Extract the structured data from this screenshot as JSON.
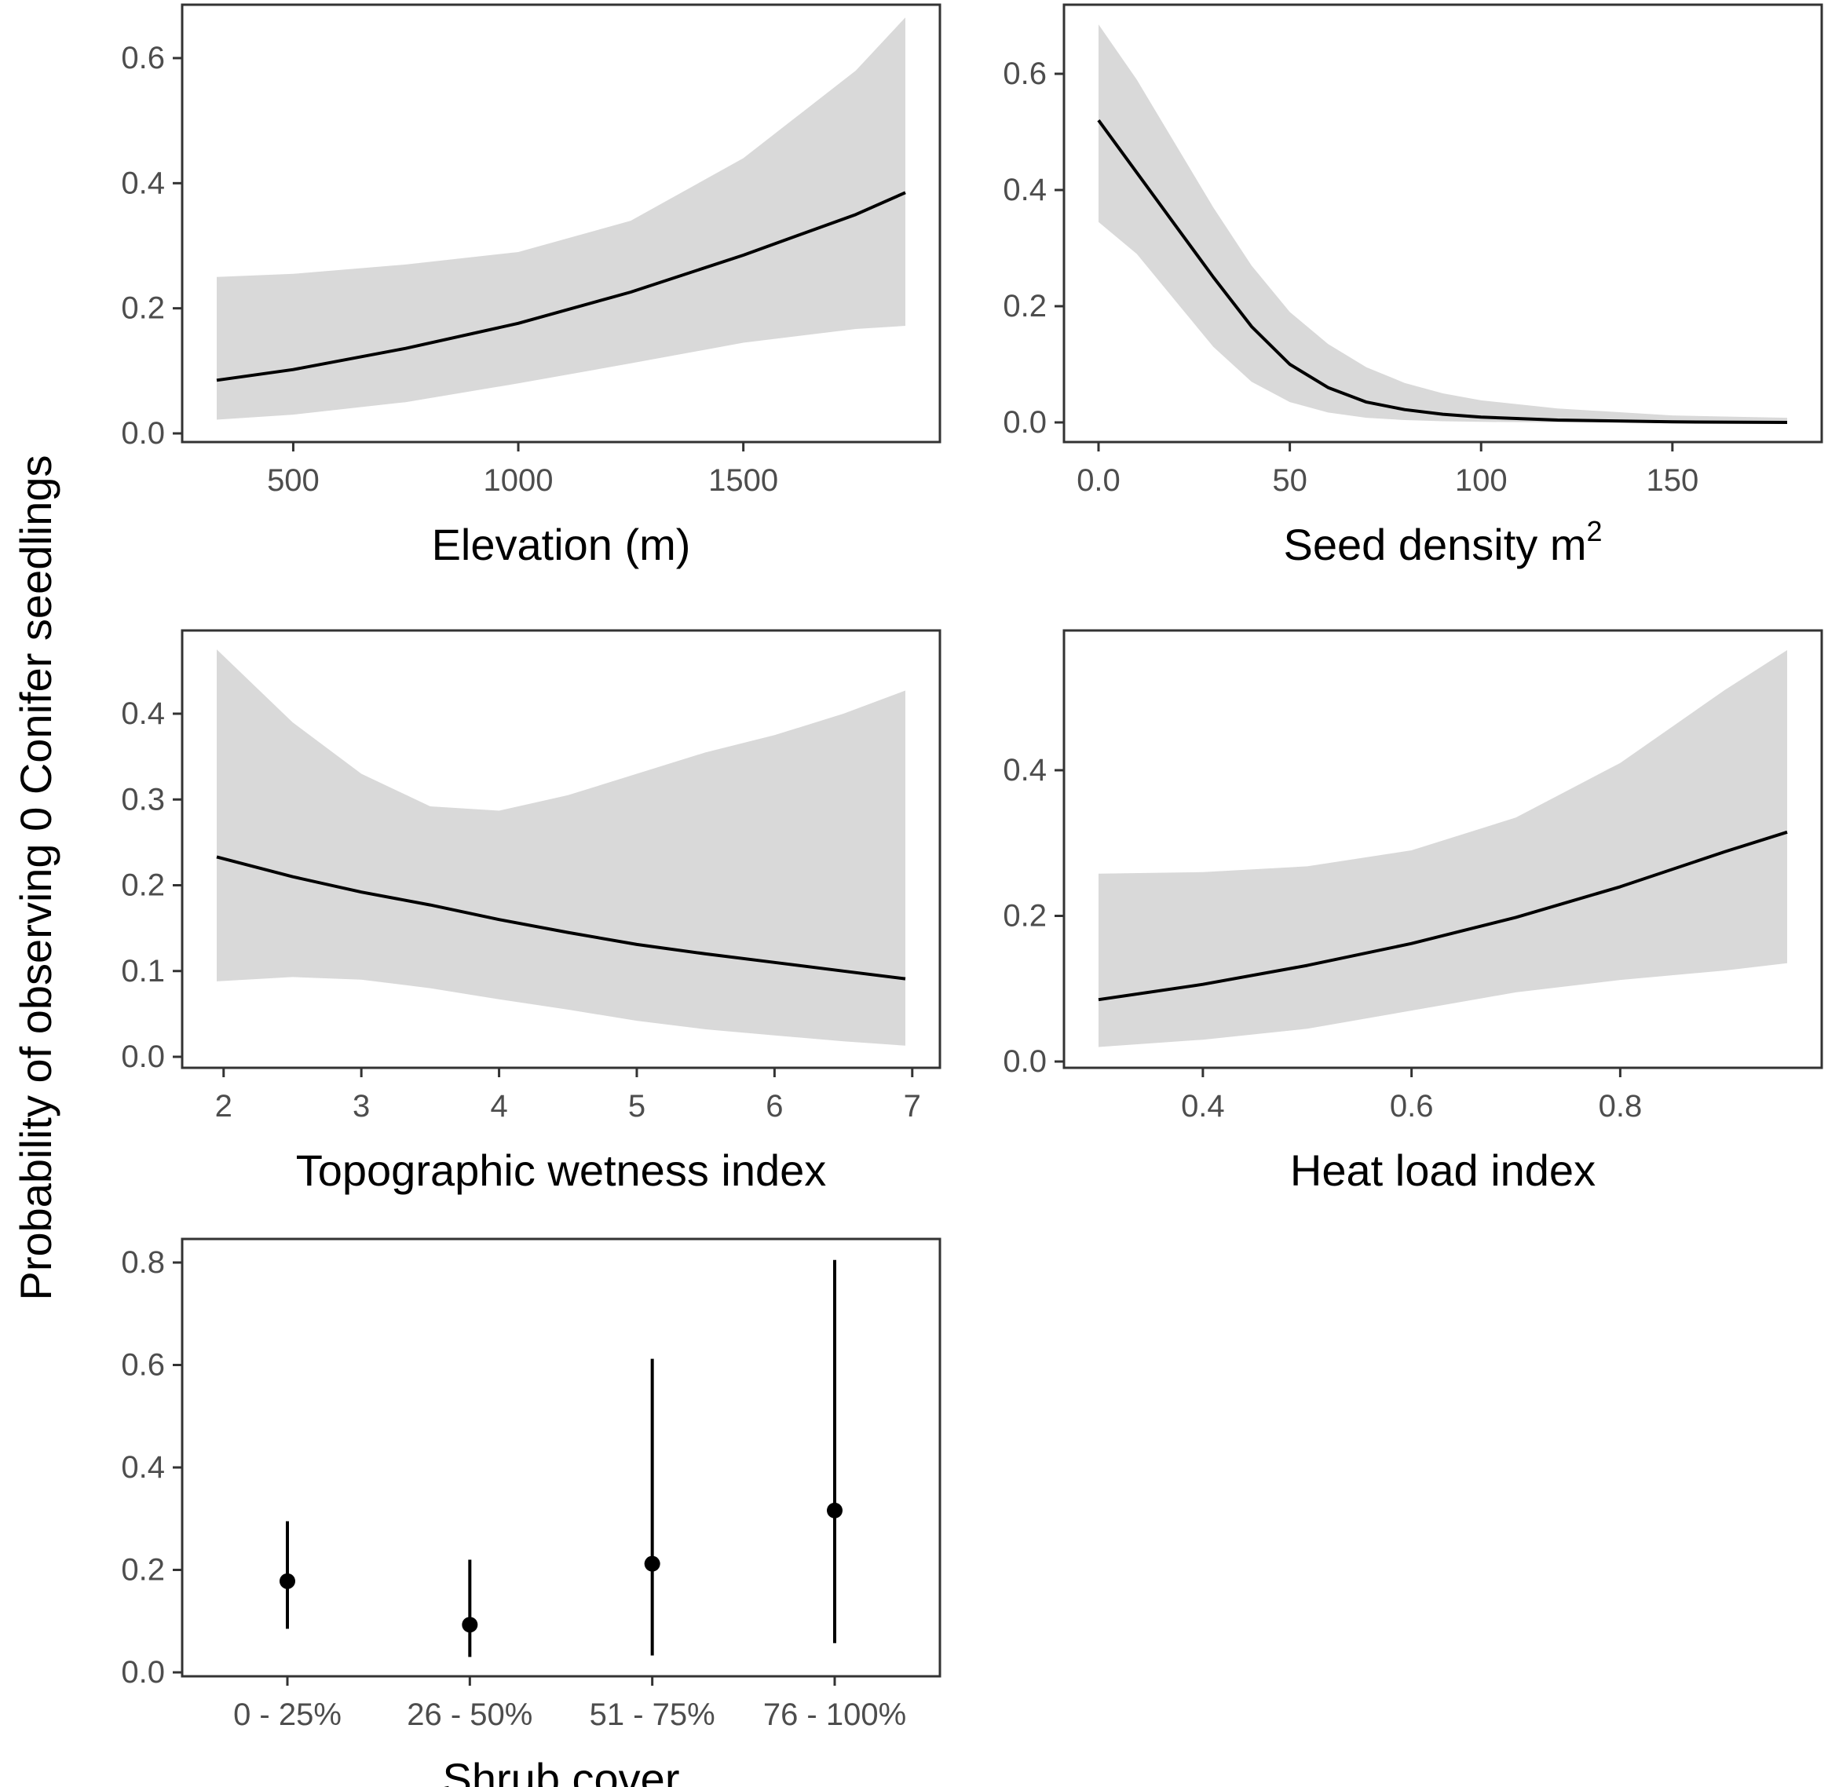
{
  "figure": {
    "ylabel": "Probability of observing 0 Conifer seedlings",
    "colors": {
      "band": "#d9d9d9",
      "line": "#000000",
      "frame": "#333333",
      "tick_text": "#4d4d4d"
    }
  },
  "chart_data": [
    {
      "id": "elevation",
      "type": "line",
      "xlabel": "Elevation (m)",
      "xlim": [
        330,
        1860
      ],
      "ylim": [
        0,
        0.6
      ],
      "xticks": [
        500,
        1000,
        1500
      ],
      "yticks": [
        0.0,
        0.2,
        0.4,
        0.6
      ],
      "x": [
        330,
        500,
        750,
        1000,
        1250,
        1500,
        1750,
        1860
      ],
      "y": [
        0.085,
        0.102,
        0.136,
        0.176,
        0.226,
        0.285,
        0.35,
        0.385
      ],
      "lower": [
        0.022,
        0.03,
        0.05,
        0.08,
        0.112,
        0.145,
        0.167,
        0.172
      ],
      "upper": [
        0.25,
        0.255,
        0.27,
        0.29,
        0.34,
        0.44,
        0.58,
        0.665
      ]
    },
    {
      "id": "seed_density",
      "type": "line",
      "xlabel": "Seed density m",
      "xlabel_sup": "2",
      "xlim": [
        0,
        180
      ],
      "ylim": [
        0,
        0.6
      ],
      "xticks": [
        0,
        50,
        100,
        150
      ],
      "yticks": [
        0.0,
        0.2,
        0.4,
        0.6
      ],
      "x": [
        0,
        10,
        20,
        30,
        40,
        50,
        60,
        70,
        80,
        90,
        100,
        120,
        150,
        180
      ],
      "y": [
        0.52,
        0.43,
        0.34,
        0.25,
        0.165,
        0.1,
        0.06,
        0.035,
        0.022,
        0.014,
        0.009,
        0.004,
        0.001,
        0.0
      ],
      "lower": [
        0.345,
        0.29,
        0.21,
        0.13,
        0.07,
        0.035,
        0.017,
        0.008,
        0.004,
        0.002,
        0.001,
        0.0,
        0.0,
        0.0
      ],
      "upper": [
        0.685,
        0.59,
        0.48,
        0.37,
        0.27,
        0.19,
        0.135,
        0.095,
        0.068,
        0.05,
        0.038,
        0.024,
        0.012,
        0.008
      ]
    },
    {
      "id": "twi",
      "type": "line",
      "xlabel": "Topographic wetness index",
      "xlim": [
        1.95,
        6.95
      ],
      "ylim": [
        0,
        0.4
      ],
      "xticks": [
        2,
        3,
        4,
        5,
        6,
        7
      ],
      "yticks": [
        0.0,
        0.1,
        0.2,
        0.3,
        0.4
      ],
      "x": [
        1.95,
        2.5,
        3.0,
        3.5,
        4.0,
        4.5,
        5.0,
        5.5,
        6.0,
        6.5,
        6.95
      ],
      "y": [
        0.233,
        0.21,
        0.192,
        0.177,
        0.16,
        0.145,
        0.131,
        0.12,
        0.11,
        0.1,
        0.091
      ],
      "lower": [
        0.088,
        0.093,
        0.09,
        0.08,
        0.067,
        0.055,
        0.042,
        0.032,
        0.025,
        0.018,
        0.013
      ],
      "upper": [
        0.475,
        0.39,
        0.33,
        0.292,
        0.287,
        0.305,
        0.33,
        0.355,
        0.375,
        0.4,
        0.427
      ]
    },
    {
      "id": "heat_load",
      "type": "line",
      "xlabel": "Heat load index",
      "xlim": [
        0.3,
        0.96
      ],
      "ylim": [
        0,
        0.4
      ],
      "xticks": [
        0.4,
        0.6,
        0.8
      ],
      "yticks": [
        0.0,
        0.2,
        0.4
      ],
      "x": [
        0.3,
        0.4,
        0.5,
        0.6,
        0.7,
        0.8,
        0.9,
        0.96
      ],
      "y": [
        0.085,
        0.106,
        0.132,
        0.162,
        0.198,
        0.24,
        0.288,
        0.315
      ],
      "lower": [
        0.02,
        0.03,
        0.045,
        0.07,
        0.095,
        0.112,
        0.125,
        0.135
      ],
      "upper": [
        0.258,
        0.26,
        0.268,
        0.29,
        0.335,
        0.41,
        0.51,
        0.565
      ]
    },
    {
      "id": "shrub_cover",
      "type": "pointrange",
      "xlabel": "Shrub cover",
      "ylim": [
        0,
        0.8
      ],
      "yticks": [
        0.0,
        0.2,
        0.4,
        0.6,
        0.8
      ],
      "categories": [
        "0 - 25%",
        "26 - 50%",
        "51 - 75%",
        "76 - 100%"
      ],
      "values": [
        0.178,
        0.093,
        0.212,
        0.316
      ],
      "lower": [
        0.085,
        0.03,
        0.033,
        0.057
      ],
      "upper": [
        0.295,
        0.22,
        0.612,
        0.805
      ]
    }
  ]
}
